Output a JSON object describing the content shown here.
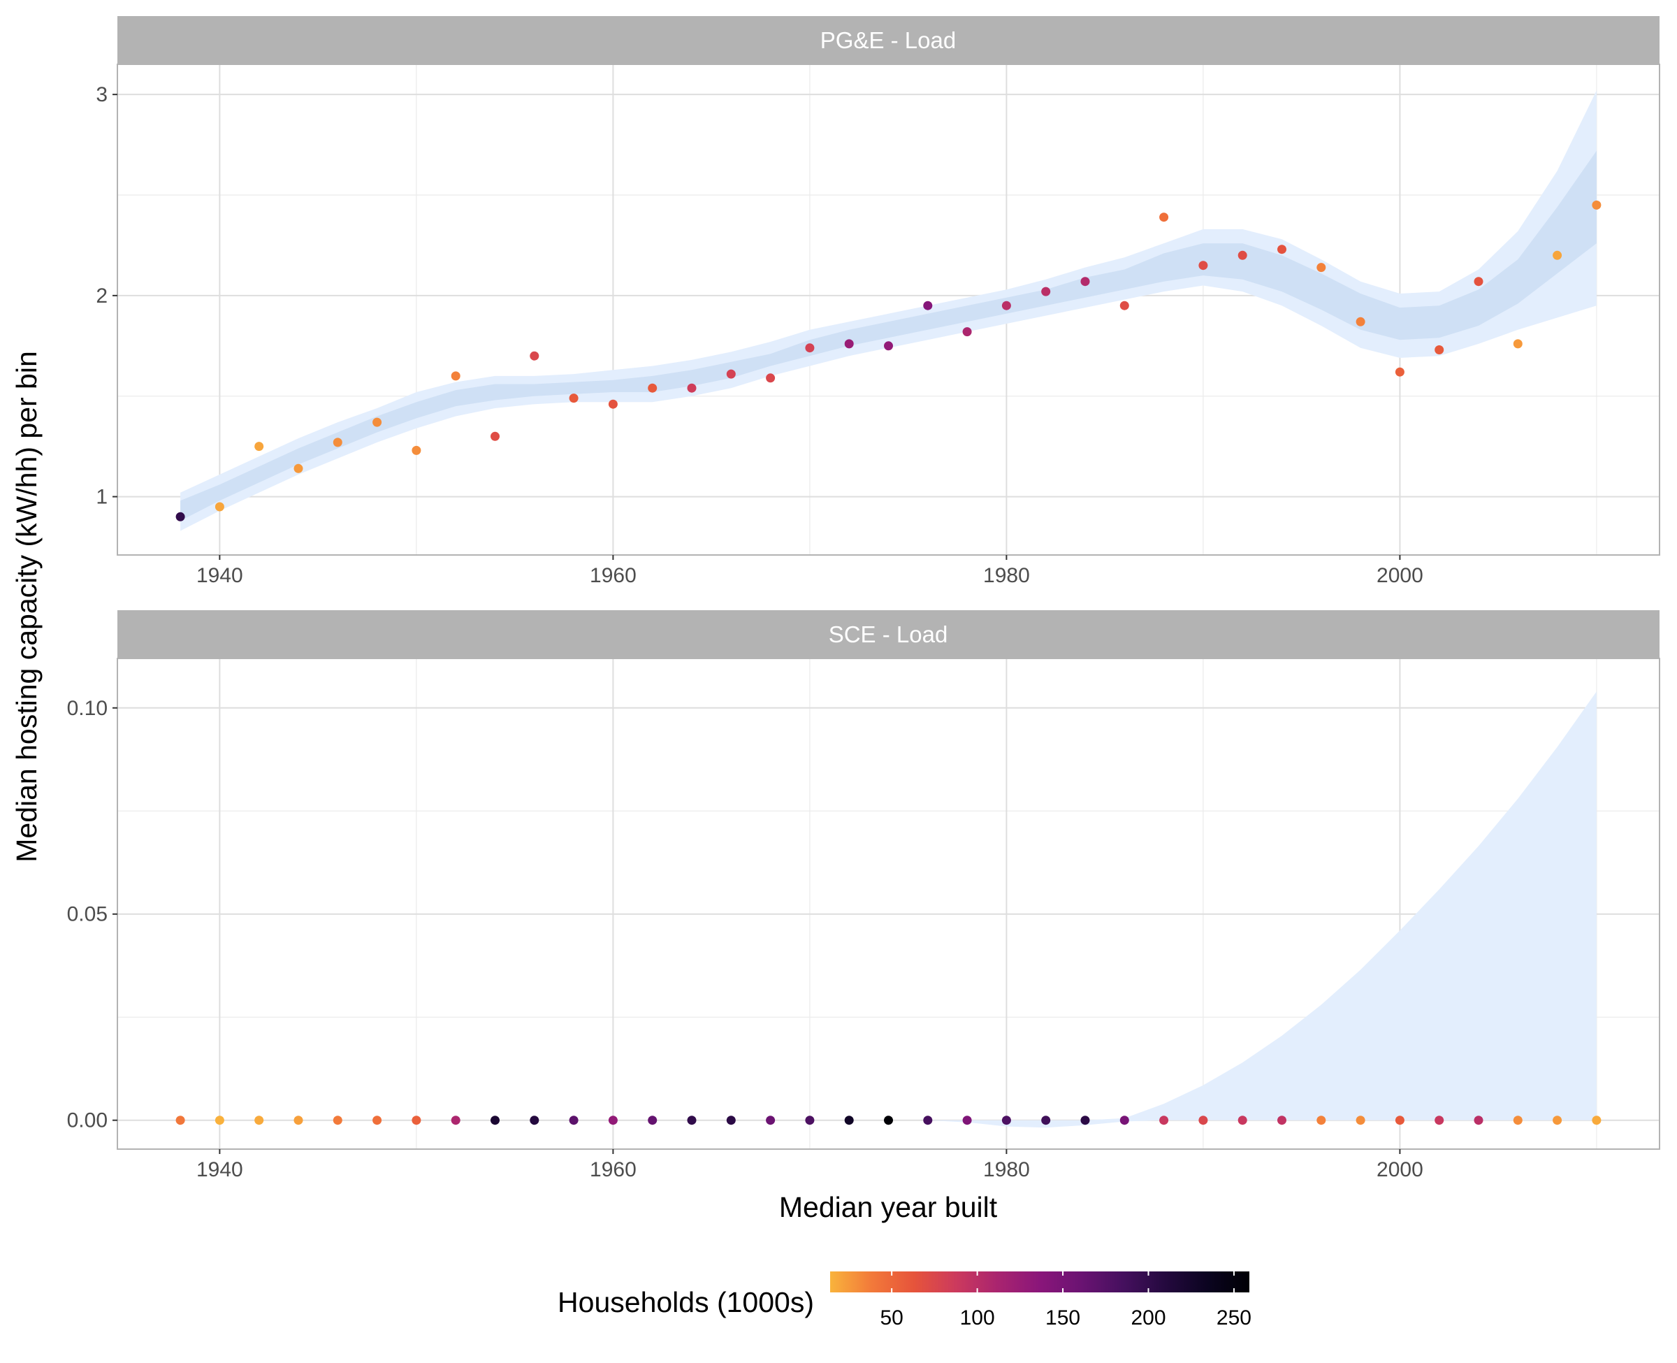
{
  "chart_data": {
    "type": "scatter",
    "xlabel": "Median year built",
    "ylabel": "Median hosting capacity (kW/hh) per bin",
    "color_scale": {
      "title": "Households (1000s)",
      "ticks": [
        "50",
        "100",
        "150",
        "200",
        "250"
      ],
      "tick_values": [
        50,
        100,
        150,
        200,
        250
      ],
      "range": [
        14,
        259
      ],
      "palette": "inferno (reversed)",
      "stops": [
        "#f9b33c",
        "#f2793a",
        "#e6543b",
        "#cc3a5d",
        "#a9246f",
        "#8a167a",
        "#6a1372",
        "#45105e",
        "#24093e",
        "#0b0420",
        "#000004"
      ]
    },
    "band_colors": {
      "ci_wide": "#e3eefd",
      "ci_narrow": "#cfe0f5"
    },
    "grid": true,
    "legend_position": "bottom",
    "panels": [
      {
        "strip": "PG&E - Load",
        "xlim": [
          1934.8,
          2013.2
        ],
        "x_ticks": [
          1940,
          1960,
          1980,
          2000
        ],
        "ylim": [
          0.71,
          3.15
        ],
        "y_ticks": [
          1,
          2,
          3
        ],
        "y_tick_labels": [
          "1",
          "2",
          "3"
        ],
        "y_minor": [
          1.5,
          2.5
        ],
        "points": [
          {
            "x": 1938,
            "y": 0.9,
            "households": 200
          },
          {
            "x": 1940,
            "y": 0.95,
            "households": 20
          },
          {
            "x": 1942,
            "y": 1.25,
            "households": 20
          },
          {
            "x": 1944,
            "y": 1.14,
            "households": 25
          },
          {
            "x": 1946,
            "y": 1.27,
            "households": 30
          },
          {
            "x": 1948,
            "y": 1.37,
            "households": 30
          },
          {
            "x": 1950,
            "y": 1.23,
            "households": 30
          },
          {
            "x": 1952,
            "y": 1.6,
            "households": 35
          },
          {
            "x": 1954,
            "y": 1.3,
            "households": 70
          },
          {
            "x": 1956,
            "y": 1.7,
            "households": 75
          },
          {
            "x": 1958,
            "y": 1.49,
            "households": 60
          },
          {
            "x": 1960,
            "y": 1.46,
            "households": 65
          },
          {
            "x": 1962,
            "y": 1.54,
            "households": 60
          },
          {
            "x": 1964,
            "y": 1.54,
            "households": 85
          },
          {
            "x": 1966,
            "y": 1.61,
            "households": 80
          },
          {
            "x": 1968,
            "y": 1.59,
            "households": 75
          },
          {
            "x": 1970,
            "y": 1.74,
            "households": 80
          },
          {
            "x": 1972,
            "y": 1.76,
            "households": 125
          },
          {
            "x": 1974,
            "y": 1.75,
            "households": 130
          },
          {
            "x": 1976,
            "y": 1.95,
            "households": 140
          },
          {
            "x": 1978,
            "y": 1.82,
            "households": 110
          },
          {
            "x": 1980,
            "y": 1.95,
            "households": 100
          },
          {
            "x": 1982,
            "y": 2.02,
            "households": 100
          },
          {
            "x": 1984,
            "y": 2.07,
            "households": 105
          },
          {
            "x": 1986,
            "y": 1.95,
            "households": 70
          },
          {
            "x": 1988,
            "y": 2.39,
            "households": 45
          },
          {
            "x": 1990,
            "y": 2.15,
            "households": 70
          },
          {
            "x": 1992,
            "y": 2.2,
            "households": 70
          },
          {
            "x": 1994,
            "y": 2.23,
            "households": 65
          },
          {
            "x": 1996,
            "y": 2.14,
            "households": 35
          },
          {
            "x": 1998,
            "y": 1.87,
            "households": 35
          },
          {
            "x": 2000,
            "y": 1.62,
            "households": 55
          },
          {
            "x": 2002,
            "y": 1.73,
            "households": 60
          },
          {
            "x": 2004,
            "y": 2.07,
            "households": 65
          },
          {
            "x": 2006,
            "y": 1.76,
            "households": 25
          },
          {
            "x": 2008,
            "y": 2.2,
            "households": 20
          },
          {
            "x": 2010,
            "y": 2.45,
            "households": 30
          }
        ],
        "band_x": [
          1938,
          1940,
          1942,
          1944,
          1946,
          1948,
          1950,
          1952,
          1954,
          1956,
          1958,
          1960,
          1962,
          1964,
          1966,
          1968,
          1970,
          1972,
          1974,
          1976,
          1978,
          1980,
          1982,
          1984,
          1986,
          1988,
          1990,
          1992,
          1994,
          1996,
          1998,
          2000,
          2002,
          2004,
          2006,
          2008,
          2010
        ],
        "fit": [
          0.93,
          1.02,
          1.11,
          1.2,
          1.28,
          1.36,
          1.43,
          1.49,
          1.52,
          1.53,
          1.54,
          1.55,
          1.56,
          1.59,
          1.63,
          1.68,
          1.74,
          1.79,
          1.83,
          1.87,
          1.91,
          1.95,
          1.99,
          2.04,
          2.08,
          2.14,
          2.18,
          2.17,
          2.11,
          2.02,
          1.92,
          1.86,
          1.87,
          1.94,
          2.07,
          2.3,
          2.6
        ],
        "inner_lower": [
          0.88,
          0.98,
          1.07,
          1.16,
          1.24,
          1.32,
          1.39,
          1.45,
          1.48,
          1.5,
          1.51,
          1.52,
          1.52,
          1.55,
          1.59,
          1.65,
          1.7,
          1.75,
          1.79,
          1.83,
          1.87,
          1.91,
          1.95,
          1.99,
          2.03,
          2.07,
          2.1,
          2.08,
          2.02,
          1.93,
          1.83,
          1.78,
          1.79,
          1.85,
          1.96,
          2.11,
          2.26
        ],
        "inner_upper": [
          0.98,
          1.06,
          1.15,
          1.24,
          1.32,
          1.4,
          1.47,
          1.53,
          1.56,
          1.56,
          1.57,
          1.58,
          1.6,
          1.63,
          1.67,
          1.71,
          1.78,
          1.83,
          1.87,
          1.91,
          1.95,
          1.99,
          2.03,
          2.09,
          2.13,
          2.21,
          2.26,
          2.26,
          2.2,
          2.11,
          2.01,
          1.94,
          1.95,
          2.03,
          2.18,
          2.44,
          2.72
        ],
        "outer_lower": [
          0.83,
          0.93,
          1.02,
          1.11,
          1.19,
          1.27,
          1.34,
          1.4,
          1.44,
          1.46,
          1.47,
          1.47,
          1.47,
          1.5,
          1.54,
          1.6,
          1.65,
          1.7,
          1.74,
          1.78,
          1.82,
          1.86,
          1.9,
          1.94,
          1.98,
          2.02,
          2.05,
          2.02,
          1.95,
          1.85,
          1.74,
          1.69,
          1.7,
          1.76,
          1.83,
          1.89,
          1.95
        ],
        "outer_upper": [
          1.02,
          1.11,
          1.2,
          1.29,
          1.37,
          1.44,
          1.52,
          1.57,
          1.6,
          1.6,
          1.61,
          1.63,
          1.65,
          1.68,
          1.72,
          1.77,
          1.83,
          1.87,
          1.91,
          1.95,
          1.99,
          2.03,
          2.08,
          2.14,
          2.19,
          2.26,
          2.33,
          2.33,
          2.28,
          2.18,
          2.07,
          2.01,
          2.02,
          2.13,
          2.32,
          2.62,
          3.02
        ]
      },
      {
        "strip": "SCE - Load",
        "xlim": [
          1934.8,
          2013.2
        ],
        "x_ticks": [
          1940,
          1960,
          1980,
          2000
        ],
        "ylim": [
          -0.007,
          0.112
        ],
        "y_ticks": [
          0,
          0.05,
          0.1
        ],
        "y_tick_labels": [
          "0.00",
          "0.05",
          "0.10"
        ],
        "y_minor": [
          0.025,
          0.075
        ],
        "points": [
          {
            "x": 1938,
            "y": 0,
            "households": 40
          },
          {
            "x": 1940,
            "y": 0,
            "households": 15
          },
          {
            "x": 1942,
            "y": 0,
            "households": 18
          },
          {
            "x": 1944,
            "y": 0,
            "households": 22
          },
          {
            "x": 1946,
            "y": 0,
            "households": 38
          },
          {
            "x": 1948,
            "y": 0,
            "households": 45
          },
          {
            "x": 1950,
            "y": 0,
            "households": 55
          },
          {
            "x": 1952,
            "y": 0,
            "households": 110
          },
          {
            "x": 1954,
            "y": 0,
            "households": 220
          },
          {
            "x": 1956,
            "y": 0,
            "households": 210
          },
          {
            "x": 1958,
            "y": 0,
            "households": 170
          },
          {
            "x": 1960,
            "y": 0,
            "households": 130
          },
          {
            "x": 1962,
            "y": 0,
            "households": 165
          },
          {
            "x": 1964,
            "y": 0,
            "households": 200
          },
          {
            "x": 1966,
            "y": 0,
            "households": 205
          },
          {
            "x": 1968,
            "y": 0,
            "households": 160
          },
          {
            "x": 1970,
            "y": 0,
            "households": 180
          },
          {
            "x": 1972,
            "y": 0,
            "households": 230
          },
          {
            "x": 1974,
            "y": 0,
            "households": 258
          },
          {
            "x": 1976,
            "y": 0,
            "households": 185
          },
          {
            "x": 1978,
            "y": 0,
            "households": 145
          },
          {
            "x": 1980,
            "y": 0,
            "households": 180
          },
          {
            "x": 1982,
            "y": 0,
            "households": 190
          },
          {
            "x": 1984,
            "y": 0,
            "households": 205
          },
          {
            "x": 1986,
            "y": 0,
            "households": 150
          },
          {
            "x": 1988,
            "y": 0,
            "households": 90
          },
          {
            "x": 1990,
            "y": 0,
            "households": 75
          },
          {
            "x": 1992,
            "y": 0,
            "households": 90
          },
          {
            "x": 1994,
            "y": 0,
            "households": 95
          },
          {
            "x": 1996,
            "y": 0,
            "households": 35
          },
          {
            "x": 1998,
            "y": 0,
            "households": 30
          },
          {
            "x": 2000,
            "y": 0,
            "households": 60
          },
          {
            "x": 2002,
            "y": 0,
            "households": 90
          },
          {
            "x": 2004,
            "y": 0,
            "households": 100
          },
          {
            "x": 2006,
            "y": 0,
            "households": 30
          },
          {
            "x": 2008,
            "y": 0,
            "households": 25
          },
          {
            "x": 2010,
            "y": 0,
            "households": 18
          }
        ],
        "band_x": [
          1938,
          1940,
          1942,
          1944,
          1946,
          1948,
          1950,
          1952,
          1954,
          1956,
          1958,
          1960,
          1962,
          1964,
          1966,
          1968,
          1970,
          1972,
          1974,
          1976,
          1978,
          1980,
          1982,
          1984,
          1986,
          1988,
          1990,
          1992,
          1994,
          1996,
          1998,
          2000,
          2002,
          2004,
          2006,
          2008,
          2010
        ],
        "outer_lower": [
          0,
          0,
          0,
          0,
          0,
          0,
          0,
          0,
          0,
          0,
          0,
          0,
          0,
          0,
          0,
          0,
          0,
          0,
          0,
          0,
          -0.0005,
          -0.0015,
          -0.0018,
          -0.0012,
          -0.0003,
          0,
          0,
          0,
          0,
          0,
          0,
          0,
          0,
          0,
          0,
          0,
          0
        ],
        "outer_upper": [
          0,
          0,
          0,
          0,
          0,
          0,
          0,
          0,
          0,
          0,
          0,
          0,
          0,
          0,
          0,
          0,
          0,
          0,
          0,
          0,
          0,
          0,
          0,
          0,
          0.0005,
          0.004,
          0.0085,
          0.014,
          0.0205,
          0.028,
          0.0365,
          0.046,
          0.056,
          0.0665,
          0.078,
          0.0905,
          0.104
        ]
      }
    ]
  }
}
